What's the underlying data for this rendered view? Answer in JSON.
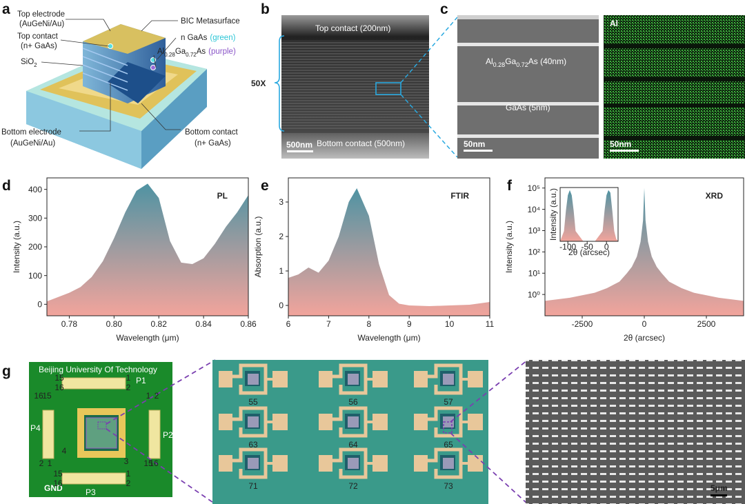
{
  "panel_labels": [
    "a",
    "b",
    "c",
    "d",
    "e",
    "f",
    "g"
  ],
  "schematic": {
    "top_electrode": [
      "Top electrode",
      "(AuGeNi/Au)"
    ],
    "top_contact": [
      "Top contact",
      "(n+ GaAs)"
    ],
    "sio2": [
      "SiO",
      "2"
    ],
    "metasurface": "BIC Metasurface",
    "n_gaas": [
      "n GaAs",
      "(green)"
    ],
    "algaas": [
      "Al",
      "0.28",
      "Ga",
      "0.72",
      "As",
      "(purple)"
    ],
    "bottom_electrode": [
      "Bottom electrode",
      "(AuGeNi/Au)"
    ],
    "bottom_contact": [
      "Bottom contact",
      "(n+ GaAs)"
    ]
  },
  "tem": {
    "top_contact": "Top contact (200nm)",
    "periods": "50X",
    "bottom_contact": "Bottom contact (500nm)",
    "scale_bar": "500nm"
  },
  "eds": {
    "barrier": [
      "Al",
      "0.28",
      "Ga",
      "0.72",
      "As (40nm)"
    ],
    "well": "GaAs (5nm)",
    "scale_bar_tem": "50nm",
    "element": "Al",
    "scale_bar_map": "50nm"
  },
  "chart_data": [
    {
      "type": "area",
      "annotation": "PL",
      "x_label": "Wavelength (μm)",
      "y_label": "Intensity (a.u.)",
      "x": [
        0.77,
        0.775,
        0.78,
        0.785,
        0.79,
        0.795,
        0.8,
        0.805,
        0.81,
        0.815,
        0.82,
        0.825,
        0.83,
        0.835,
        0.84,
        0.845,
        0.85,
        0.855,
        0.86
      ],
      "values": [
        10,
        25,
        40,
        60,
        95,
        150,
        230,
        320,
        395,
        420,
        370,
        220,
        145,
        140,
        160,
        210,
        270,
        320,
        380
      ],
      "xlim": [
        0.77,
        0.86
      ],
      "ylim": [
        -40,
        440
      ],
      "xticks": [
        0.78,
        {
          "value": 0.8,
          "label": "0.80"
        },
        0.82,
        0.84,
        0.86
      ],
      "yticks": [
        0,
        100,
        200,
        300,
        400
      ],
      "colors": [
        "#4f93a3",
        "#f2a49c"
      ]
    },
    {
      "type": "area",
      "annotation": "FTIR",
      "x_label": "Wavelength (μm)",
      "y_label": "Absorption (a.u.)",
      "x": [
        6,
        6.25,
        6.5,
        6.75,
        7,
        7.25,
        7.5,
        7.7,
        8,
        8.25,
        8.5,
        8.75,
        9,
        9.5,
        10,
        10.5,
        11
      ],
      "values": [
        0.8,
        0.9,
        1.1,
        0.95,
        1.3,
        2.0,
        3.0,
        3.4,
        2.6,
        1.2,
        0.3,
        0.05,
        0.0,
        -0.02,
        0.0,
        0.02,
        0.1
      ],
      "xlim": [
        6,
        11
      ],
      "ylim": [
        -0.3,
        3.7
      ],
      "xticks": [
        6,
        7,
        8,
        9,
        10,
        11
      ],
      "yticks": [
        0,
        1,
        2,
        3
      ],
      "colors": [
        "#4f93a3",
        "#f2a49c"
      ]
    },
    {
      "type": "area",
      "annotation": "XRD",
      "x_label": "2θ (arcsec)",
      "y_label": "Intensity (a.u.)",
      "y_scale": "log",
      "x": [
        -4000,
        -3000,
        -2000,
        -1500,
        -1000,
        -700,
        -500,
        -300,
        -150,
        -50,
        0,
        50,
        150,
        300,
        500,
        700,
        1000,
        1500,
        2000,
        3000,
        4000
      ],
      "values": [
        0.5,
        0.7,
        1.2,
        2,
        4,
        10,
        20,
        60,
        300,
        3000,
        100000,
        3000,
        300,
        60,
        20,
        10,
        4,
        2,
        1.2,
        0.7,
        0.5
      ],
      "xlim": [
        -4000,
        4000
      ],
      "ylim": [
        0.1,
        300000
      ],
      "xticks": [
        -2500,
        0,
        2500
      ],
      "yticks": [
        {
          "value": 1,
          "label": "10⁰"
        },
        {
          "value": 10,
          "label": "10¹"
        },
        {
          "value": 100,
          "label": "10²"
        },
        {
          "value": 1000,
          "label": "10³"
        },
        {
          "value": 10000,
          "label": "10⁴"
        },
        {
          "value": 100000,
          "label": "10⁵"
        }
      ],
      "colors": [
        "#4f93a3",
        "#f2a49c"
      ],
      "inset": {
        "x_label": "2θ (arcsec)",
        "y_label": "Intensity (a.u.)",
        "x": [
          -120,
          -110,
          -105,
          -100,
          -95,
          -90,
          -85,
          -80,
          -60,
          -30,
          -10,
          -5,
          0,
          5,
          10,
          15,
          20,
          25,
          30
        ],
        "values": [
          0,
          0.2,
          0.6,
          0.9,
          1.0,
          0.9,
          0.6,
          0.2,
          0,
          0,
          0.2,
          0.6,
          0.9,
          1.0,
          0.95,
          0.6,
          0.2,
          0.05,
          0
        ],
        "xlim": [
          -120,
          30
        ],
        "ylim": [
          0,
          1.05
        ],
        "xticks": [
          -100,
          -50,
          0
        ]
      }
    }
  ],
  "device": {
    "board_title": "Beijing University Of Technology",
    "ports": [
      "P1",
      "P2",
      "P3",
      "P4",
      "GND"
    ],
    "pin_labels": [
      "15",
      "16",
      "1",
      "2",
      "16",
      "15",
      "1",
      "2",
      "2",
      "1",
      "15",
      "16",
      "15",
      "16",
      "1",
      "2",
      "3",
      "4"
    ],
    "devices": [
      "55",
      "56",
      "57",
      "63",
      "64",
      "65",
      "71",
      "72",
      "73"
    ],
    "sem_scale_bar": "5μm"
  }
}
